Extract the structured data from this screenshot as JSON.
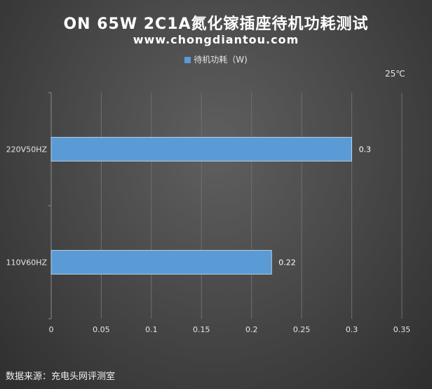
{
  "chart_data": {
    "type": "bar",
    "orientation": "horizontal",
    "title": "ON 65W 2C1A氮化镓插座待机功耗测试",
    "subtitle": "www.chongdiantou.com",
    "annotation": "25℃",
    "source": "数据来源：充电头网评测室",
    "categories": [
      "220V50HZ",
      "110V60HZ"
    ],
    "series": [
      {
        "name": "待机功耗（W)",
        "values": [
          0.3,
          0.22
        ],
        "color": "#5b9bd5"
      }
    ],
    "xlim": [
      0,
      0.35
    ],
    "xticks": [
      "0",
      "0.05",
      "0.1",
      "0.15",
      "0.2",
      "0.25",
      "0.3",
      "0.35"
    ],
    "grid": true,
    "legend_position": "top"
  }
}
